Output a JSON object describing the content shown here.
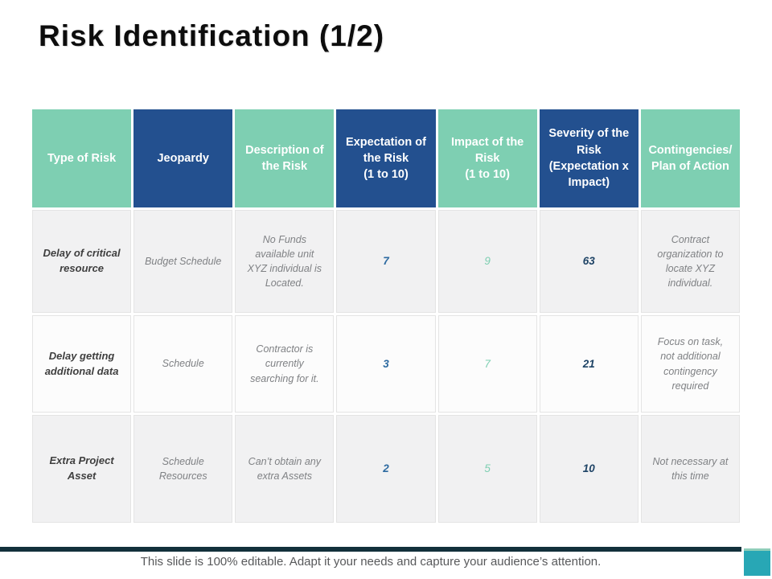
{
  "slide": {
    "title": "Risk Identification (1/2)",
    "footer_note": "This slide is 100% editable. Adapt it your needs and capture your audience’s attention."
  },
  "colors": {
    "header_teal": "#7ecfb2",
    "header_blue": "#23508f",
    "expectation_value": "#2e6ba1",
    "impact_value": "#7ecfb2",
    "severity_value": "#1f4466",
    "accent_bar": "#12303b",
    "accent_square": "#28a7b5",
    "row_shade": "#f1f1f2"
  },
  "table": {
    "headers": [
      {
        "label": "Type of Risk",
        "variant": "teal"
      },
      {
        "label": "Jeopardy",
        "variant": "blue"
      },
      {
        "label": "Description of the Risk",
        "variant": "teal"
      },
      {
        "label": "Expectation of the Risk\n(1 to 10)",
        "variant": "blue"
      },
      {
        "label": "Impact of the Risk\n(1 to 10)",
        "variant": "teal"
      },
      {
        "label": "Severity of the Risk (Expectation x Impact)",
        "variant": "blue"
      },
      {
        "label": "Contingencies/ Plan of Action",
        "variant": "teal"
      }
    ],
    "rows": [
      {
        "type_of_risk": "Delay of critical resource",
        "jeopardy": "Budget Schedule",
        "description": "No Funds available unit XYZ individual is Located.",
        "expectation": "7",
        "impact": "9",
        "severity": "63",
        "contingencies": "Contract organization to locate XYZ individual."
      },
      {
        "type_of_risk": "Delay getting additional data",
        "jeopardy": "Schedule",
        "description": "Contractor is currently searching for it.",
        "expectation": "3",
        "impact": "7",
        "severity": "21",
        "contingencies": "Focus on task, not additional contingency required"
      },
      {
        "type_of_risk": "Extra Project Asset",
        "jeopardy": "Schedule Resources",
        "description": "Can’t obtain any extra Assets",
        "expectation": "2",
        "impact": "5",
        "severity": "10",
        "contingencies": "Not necessary at this time"
      }
    ]
  }
}
